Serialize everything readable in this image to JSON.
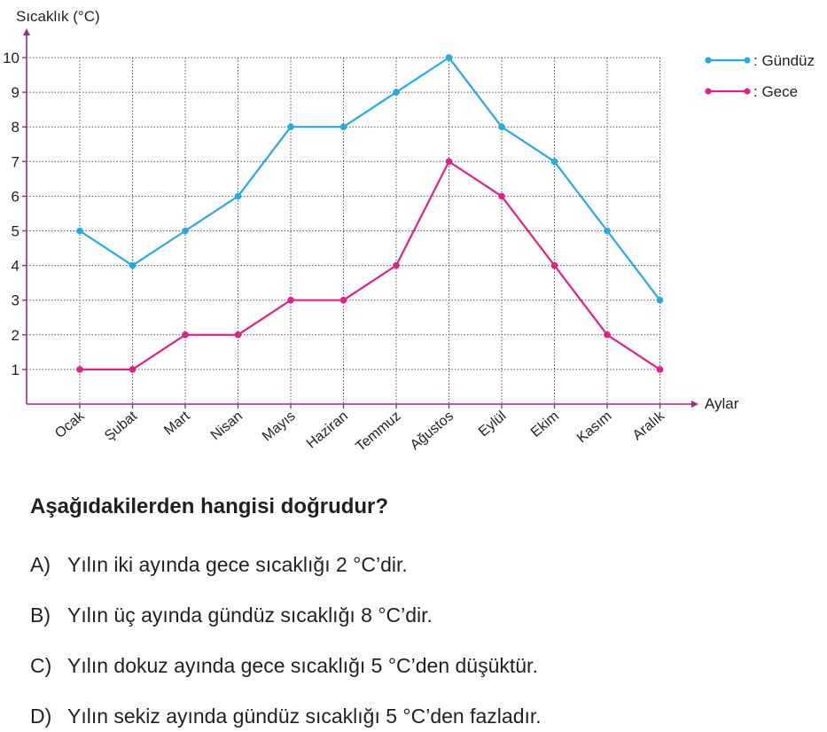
{
  "chart_data": {
    "type": "line",
    "ylabel": "Sıcaklık (°C)",
    "xlabel": "Aylar",
    "categories": [
      "Ocak",
      "Şubat",
      "Mart",
      "Nisan",
      "Mayıs",
      "Haziran",
      "Temmuz",
      "Ağustos",
      "Eylül",
      "Ekim",
      "Kasım",
      "Aralık"
    ],
    "yticks": [
      1,
      2,
      3,
      4,
      5,
      6,
      7,
      8,
      9,
      10
    ],
    "ylim": [
      0,
      10
    ],
    "grid": true,
    "grid_style": "dotted",
    "legend_position": "top-right",
    "series": [
      {
        "name": ": Gündüz",
        "color": "#27a9e1",
        "values": [
          5,
          4,
          5,
          6,
          8,
          8,
          9,
          10,
          8,
          7,
          5,
          3
        ]
      },
      {
        "name": ": Gece",
        "color": "#e0218a",
        "values": [
          1,
          1,
          2,
          2,
          3,
          3,
          4,
          7,
          6,
          4,
          2,
          1
        ]
      }
    ],
    "axis_color": "#9b2d8e"
  },
  "question": {
    "text": "Aşağıdakilerden hangisi doğrudur?",
    "options": [
      {
        "letter": "A)",
        "text": "Yılın iki ayında gece sıcaklığı 2 °C’dir."
      },
      {
        "letter": "B)",
        "text": "Yılın üç ayında gündüz sıcaklığı 8 °C’dir."
      },
      {
        "letter": "C)",
        "text": "Yılın dokuz ayında gece sıcaklığı 5 °C’den düşüktür."
      },
      {
        "letter": "D)",
        "text": "Yılın sekiz ayında gündüz sıcaklığı 5 °C’den fazladır."
      }
    ]
  }
}
